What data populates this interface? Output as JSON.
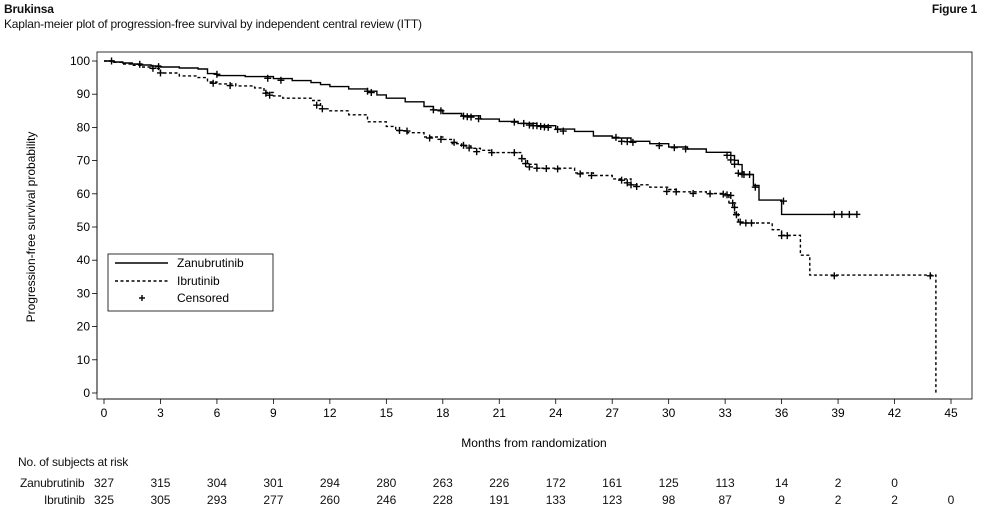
{
  "header": {
    "brand": "Brukinsa",
    "figure_label": "Figure 1",
    "subtitle": "Kaplan-meier plot of progression-free survival by independent central review (ITT)"
  },
  "risk_table": {
    "title": "No. of subjects at risk",
    "rows": [
      {
        "label": "Zanubrutinib",
        "values": [
          "327",
          "315",
          "304",
          "301",
          "294",
          "280",
          "263",
          "226",
          "172",
          "161",
          "125",
          "113",
          "14",
          "2",
          "0"
        ]
      },
      {
        "label": "Ibrutinib",
        "values": [
          "325",
          "305",
          "293",
          "277",
          "260",
          "246",
          "228",
          "191",
          "133",
          "123",
          "98",
          "87",
          "9",
          "2",
          "2",
          "0"
        ]
      }
    ]
  },
  "chart_data": {
    "type": "line",
    "title": "",
    "xlabel": "Months from randomization",
    "ylabel": "Progression-free survival probability",
    "xlim": [
      0,
      45
    ],
    "ylim": [
      0,
      100
    ],
    "xticks": [
      0,
      3,
      6,
      9,
      12,
      15,
      18,
      21,
      24,
      27,
      30,
      33,
      36,
      39,
      42,
      45
    ],
    "yticks": [
      0,
      10,
      20,
      30,
      40,
      50,
      60,
      70,
      80,
      90,
      100
    ],
    "legend": {
      "placement": "left-lower",
      "entries": [
        "Zanubrutinib",
        "Ibrutinib",
        "Censored"
      ]
    },
    "series": [
      {
        "name": "Zanubrutinib",
        "style": "solid",
        "step": [
          [
            0,
            100
          ],
          [
            0.5,
            99.7
          ],
          [
            1,
            99.4
          ],
          [
            1.5,
            99.1
          ],
          [
            2,
            98.8
          ],
          [
            2.5,
            98.5
          ],
          [
            3,
            98.2
          ],
          [
            4,
            97.9
          ],
          [
            5,
            97.6
          ],
          [
            5.5,
            96.2
          ],
          [
            6,
            95.6
          ],
          [
            7.5,
            95.3
          ],
          [
            9,
            94.7
          ],
          [
            10,
            94.1
          ],
          [
            11,
            93.5
          ],
          [
            11.5,
            92.9
          ],
          [
            12,
            92.3
          ],
          [
            13,
            91.6
          ],
          [
            14,
            90.9
          ],
          [
            14.5,
            89.8
          ],
          [
            15,
            88.8
          ],
          [
            16,
            87.7
          ],
          [
            17,
            86.3
          ],
          [
            17.5,
            85.2
          ],
          [
            18,
            84.2
          ],
          [
            19,
            83.5
          ],
          [
            20,
            82.5
          ],
          [
            21,
            81.8
          ],
          [
            22,
            81.2
          ],
          [
            23,
            80.5
          ],
          [
            24,
            79.5
          ],
          [
            25,
            78.8
          ],
          [
            26,
            77.4
          ],
          [
            27,
            76.8
          ],
          [
            28,
            75.8
          ],
          [
            29,
            75.1
          ],
          [
            30,
            74.1
          ],
          [
            31,
            73.5
          ],
          [
            32,
            72.5
          ],
          [
            33,
            72.5
          ],
          [
            33.3,
            71.5
          ],
          [
            33.5,
            70.1
          ],
          [
            33.7,
            68.8
          ],
          [
            33.9,
            66.5
          ],
          [
            34,
            65.8
          ],
          [
            34.5,
            62.5
          ],
          [
            34.8,
            58.1
          ],
          [
            36,
            53.8
          ],
          [
            40,
            53.8
          ]
        ],
        "censored": [
          [
            0.4,
            100
          ],
          [
            1.9,
            99
          ],
          [
            2.9,
            98.3
          ],
          [
            6,
            96
          ],
          [
            8.7,
            94.8
          ],
          [
            9.4,
            94.2
          ],
          [
            14,
            90.9
          ],
          [
            14.2,
            90.5
          ],
          [
            17.5,
            85.3
          ],
          [
            17.9,
            85
          ],
          [
            19.1,
            83.4
          ],
          [
            19.3,
            83.2
          ],
          [
            19.5,
            83.1
          ],
          [
            19.9,
            82.6
          ],
          [
            21.8,
            81.6
          ],
          [
            22.3,
            81.2
          ],
          [
            22.6,
            80.7
          ],
          [
            22.8,
            80.5
          ],
          [
            23,
            80.5
          ],
          [
            23.2,
            80.3
          ],
          [
            23.4,
            80.1
          ],
          [
            23.6,
            80
          ],
          [
            24.1,
            79.4
          ],
          [
            24.4,
            78.9
          ],
          [
            27.2,
            77
          ],
          [
            27.5,
            75.8
          ],
          [
            27.8,
            75.7
          ],
          [
            28.1,
            75.5
          ],
          [
            29.5,
            74.5
          ],
          [
            30.3,
            73.9
          ],
          [
            30.9,
            73.5
          ],
          [
            33.1,
            71.6
          ],
          [
            33.3,
            70.2
          ],
          [
            33.5,
            68.9
          ],
          [
            33.7,
            66.2
          ],
          [
            33.9,
            65.9
          ],
          [
            34,
            65.8
          ],
          [
            34.3,
            65.8
          ],
          [
            34.6,
            62
          ],
          [
            36.1,
            57.8
          ],
          [
            38.8,
            53.8
          ],
          [
            39.2,
            53.8
          ],
          [
            39.6,
            53.8
          ],
          [
            40,
            53.8
          ]
        ]
      },
      {
        "name": "Ibrutinib",
        "style": "dashed",
        "step": [
          [
            0,
            100
          ],
          [
            0.5,
            99.6
          ],
          [
            1,
            99.1
          ],
          [
            1.5,
            98.7
          ],
          [
            2,
            98.2
          ],
          [
            2.5,
            97.7
          ],
          [
            3,
            96.4
          ],
          [
            4,
            95.5
          ],
          [
            5,
            95
          ],
          [
            5.5,
            93.7
          ],
          [
            6,
            93.1
          ],
          [
            7,
            92.5
          ],
          [
            8,
            91.9
          ],
          [
            8.5,
            90.5
          ],
          [
            9,
            89.5
          ],
          [
            9.5,
            88.8
          ],
          [
            11,
            88.1
          ],
          [
            11.5,
            85.6
          ],
          [
            12,
            85
          ],
          [
            13,
            83.8
          ],
          [
            14,
            81.7
          ],
          [
            15,
            80.3
          ],
          [
            15.5,
            79
          ],
          [
            16,
            78.4
          ],
          [
            17,
            77.1
          ],
          [
            18,
            76.4
          ],
          [
            18.5,
            75.1
          ],
          [
            19,
            74.4
          ],
          [
            19.5,
            73.7
          ],
          [
            20,
            73.1
          ],
          [
            20.5,
            72.4
          ],
          [
            21,
            72.4
          ],
          [
            22,
            72.4
          ],
          [
            22.2,
            70.5
          ],
          [
            22.5,
            68.9
          ],
          [
            23,
            67.7
          ],
          [
            24,
            67.7
          ],
          [
            25,
            66.3
          ],
          [
            26,
            65.5
          ],
          [
            27,
            64.5
          ],
          [
            28,
            62.7
          ],
          [
            29,
            62
          ],
          [
            30,
            61.3
          ],
          [
            30.5,
            60.6
          ],
          [
            32,
            60.1
          ],
          [
            33,
            59.4
          ],
          [
            33.2,
            57.3
          ],
          [
            33.5,
            54.2
          ],
          [
            33.7,
            51.2
          ],
          [
            35,
            51.2
          ],
          [
            35.5,
            49.2
          ],
          [
            36,
            47.5
          ],
          [
            37,
            41.5
          ],
          [
            37.5,
            35.5
          ],
          [
            42,
            35.5
          ],
          [
            44,
            35.5
          ],
          [
            44.2,
            0
          ]
        ],
        "censored": [
          [
            2.6,
            97.8
          ],
          [
            3,
            96.4
          ],
          [
            5.8,
            93.3
          ],
          [
            6.7,
            92.6
          ],
          [
            8.6,
            90.3
          ],
          [
            8.8,
            89.7
          ],
          [
            11.3,
            86.7
          ],
          [
            11.6,
            85.6
          ],
          [
            15.7,
            79.1
          ],
          [
            16.1,
            78.9
          ],
          [
            17.3,
            76.8
          ],
          [
            17.9,
            76.4
          ],
          [
            18.6,
            75.5
          ],
          [
            19.1,
            74.6
          ],
          [
            19.4,
            73.8
          ],
          [
            19.8,
            72.7
          ],
          [
            20.6,
            72.4
          ],
          [
            21.8,
            72.4
          ],
          [
            22.2,
            70.6
          ],
          [
            22.4,
            69.1
          ],
          [
            22.6,
            68.1
          ],
          [
            23,
            67.7
          ],
          [
            23.5,
            67.6
          ],
          [
            24.1,
            67.5
          ],
          [
            25.3,
            66
          ],
          [
            25.9,
            65.5
          ],
          [
            27.5,
            64.1
          ],
          [
            27.8,
            63.3
          ],
          [
            28,
            62.7
          ],
          [
            28.3,
            62.2
          ],
          [
            29.9,
            60.7
          ],
          [
            30.4,
            60.6
          ],
          [
            31.3,
            60.1
          ],
          [
            32.2,
            60
          ],
          [
            32.9,
            59.9
          ],
          [
            33.1,
            59.7
          ],
          [
            33.3,
            59.5
          ],
          [
            33.4,
            57.2
          ],
          [
            33.5,
            55.9
          ],
          [
            33.6,
            53.7
          ],
          [
            33.8,
            51.5
          ],
          [
            34.1,
            51.2
          ],
          [
            34.4,
            51.2
          ],
          [
            36,
            47.4
          ],
          [
            36.3,
            47.4
          ],
          [
            38.8,
            35.3
          ],
          [
            43.9,
            35.3
          ]
        ]
      }
    ]
  }
}
